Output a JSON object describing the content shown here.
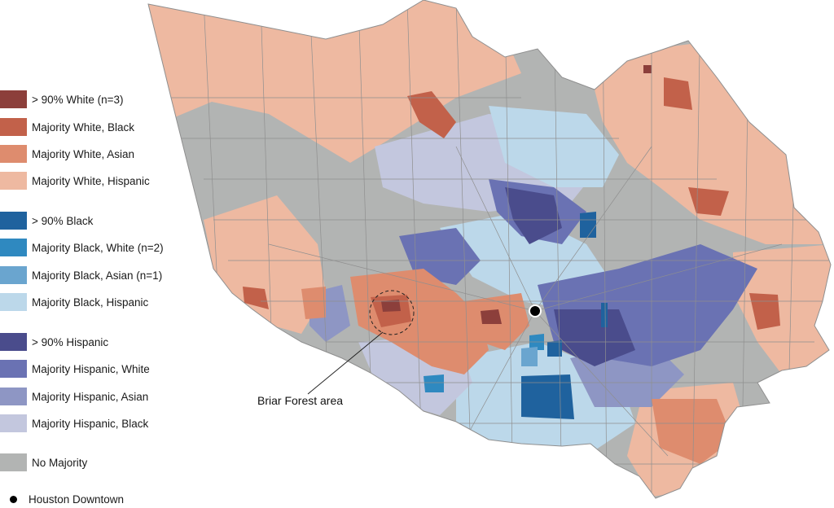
{
  "legend": {
    "items": [
      {
        "label": "> 90% White (n=3)",
        "color": "#8c3f3b"
      },
      {
        "label": "Majority White, Black",
        "color": "#c2614a"
      },
      {
        "label": "Majority White, Asian",
        "color": "#de8c6e"
      },
      {
        "label": "Majority White, Hispanic",
        "color": "#eeb9a1"
      },
      {
        "label": "> 90% Black",
        "color": "#1f629e"
      },
      {
        "label": "Majority Black, White (n=2)",
        "color": "#2f89c0"
      },
      {
        "label": "Majority Black, Asian (n=1)",
        "color": "#6aa5cf"
      },
      {
        "label": "Majority Black, Hispanic",
        "color": "#bcd8ea"
      },
      {
        "label": "> 90% Hispanic",
        "color": "#4a4c8c"
      },
      {
        "label": "Majority Hispanic, White",
        "color": "#6a72b3"
      },
      {
        "label": "Majority Hispanic, Asian",
        "color": "#8e96c4"
      },
      {
        "label": "Majority Hispanic, Black",
        "color": "#c3c7de"
      },
      {
        "label": "No Majority",
        "color": "#b2b4b3"
      }
    ],
    "downtown_label": "Houston Downtown"
  },
  "map": {
    "callout_label": "Briar Forest area",
    "outline_color": "#8f8f8f"
  }
}
